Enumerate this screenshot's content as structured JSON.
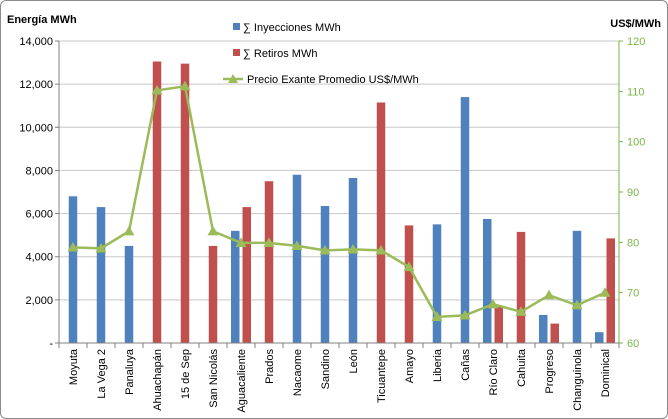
{
  "chart_data": {
    "type": "bar",
    "categories": [
      "Moyuta",
      "La Vega 2",
      "Panaluya",
      "Ahuachapán",
      "15 de Sep",
      "San Nicolás",
      "Aguacaliente",
      "Prados",
      "Nacaome",
      "Sandino",
      "León",
      "Ticuantepe",
      "Amayo",
      "Liberia",
      "Cañas",
      "Río Claro",
      "Cahuita",
      "Progreso",
      "Changuinola",
      "Dominical"
    ],
    "series": [
      {
        "name": "∑ Inyecciones MWh",
        "type": "bar",
        "axis": "left",
        "color": "#4f81bd",
        "values": [
          6800,
          6300,
          4500,
          0,
          0,
          0,
          5200,
          0,
          7800,
          6350,
          7650,
          0,
          0,
          5500,
          11400,
          5750,
          0,
          1300,
          5200,
          500
        ]
      },
      {
        "name": "∑ Retiros MWh",
        "type": "bar",
        "axis": "left",
        "color": "#c0504d",
        "values": [
          0,
          0,
          0,
          13050,
          12950,
          4500,
          6300,
          7500,
          0,
          0,
          0,
          11150,
          5450,
          0,
          0,
          1700,
          5150,
          900,
          0,
          4850
        ]
      },
      {
        "name": "Precio Exante Promedio US$/MWh",
        "type": "line",
        "axis": "right",
        "color": "#9bbb59",
        "values": [
          79,
          78.8,
          82.2,
          110.2,
          111,
          82.2,
          79.9,
          79.9,
          79.3,
          78.4,
          78.6,
          78.4,
          75.1,
          65.2,
          65.5,
          67.7,
          66.2,
          69.5,
          67.5,
          70
        ]
      }
    ],
    "ylabel": "Energía MWh",
    "y2label": "US$/MWh",
    "ylim": [
      0,
      14000
    ],
    "y2lim": [
      60,
      120
    ],
    "yticks": [
      "-",
      "2,000",
      "4,000",
      "6,000",
      "8,000",
      "10,000",
      "12,000",
      "14,000"
    ],
    "y2ticks": [
      "60",
      "70",
      "80",
      "90",
      "100",
      "110",
      "120"
    ],
    "grid": true,
    "legend": "top-center"
  }
}
